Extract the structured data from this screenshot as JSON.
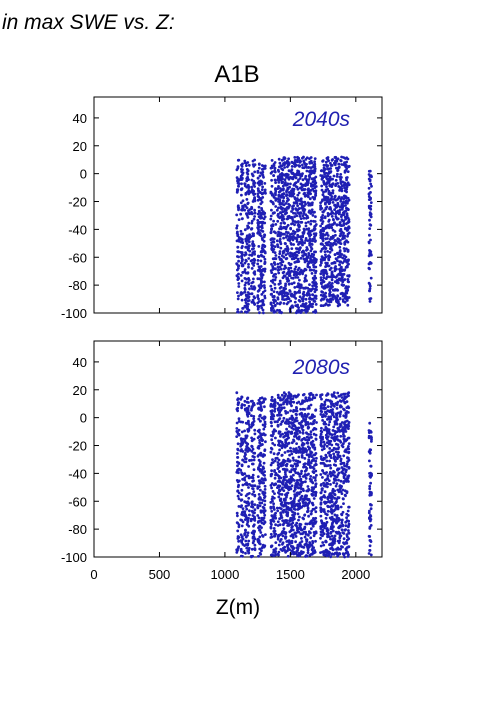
{
  "figure_title": "in max SWE vs. Z:",
  "point_color": "#1f1fb4",
  "chart_data": {
    "type": "scatter",
    "title": "A1B",
    "xlabel": "Z(m)",
    "ylabel": "",
    "xlim": [
      0,
      2200
    ],
    "x_ticks": [
      0,
      500,
      1000,
      1500,
      2000
    ],
    "grid": false,
    "panels": [
      {
        "label": "2040s",
        "ylim": [
          -100,
          55
        ],
        "y_ticks": [
          40,
          20,
          0,
          -20,
          -40,
          -60,
          -80,
          -100
        ],
        "point_density_note": "",
        "series": [
          {
            "point_groups_by_elevation": [
              {
                "z_range": [
                  1090,
                  1110
                ],
                "y_range": [
                  -100,
                  10
                ]
              },
              {
                "z_range": [
                  1120,
                  1140
                ],
                "y_range": [
                  -100,
                  8
                ]
              },
              {
                "z_range": [
                  1150,
                  1190
                ],
                "y_range": [
                  -100,
                  10
                ]
              },
              {
                "z_range": [
                  1200,
                  1230
                ],
                "y_range": [
                  -95,
                  10
                ]
              },
              {
                "z_range": [
                  1250,
                  1310
                ],
                "y_range": [
                  -100,
                  10
                ]
              },
              {
                "z_range": [
                  1350,
                  1390
                ],
                "y_range": [
                  -100,
                  10
                ]
              },
              {
                "z_range": [
                  1400,
                  1700
                ],
                "y_range": [
                  -100,
                  12
                ]
              },
              {
                "z_range": [
                  1730,
                  1950
                ],
                "y_range": [
                  -95,
                  12
                ]
              },
              {
                "z_range": [
                  2100,
                  2120
                ],
                "y_range": [
                  -92,
                  2
                ]
              }
            ]
          }
        ]
      },
      {
        "label": "2080s",
        "ylim": [
          -100,
          55
        ],
        "y_ticks": [
          40,
          20,
          0,
          -20,
          -40,
          -60,
          -80,
          -100
        ],
        "point_density_note": "",
        "series": [
          {
            "point_groups_by_elevation": [
              {
                "z_range": [
                  1090,
                  1110
                ],
                "y_range": [
                  -100,
                  18
                ]
              },
              {
                "z_range": [
                  1120,
                  1140
                ],
                "y_range": [
                  -100,
                  15
                ]
              },
              {
                "z_range": [
                  1150,
                  1190
                ],
                "y_range": [
                  -100,
                  15
                ]
              },
              {
                "z_range": [
                  1200,
                  1230
                ],
                "y_range": [
                  -100,
                  12
                ]
              },
              {
                "z_range": [
                  1250,
                  1310
                ],
                "y_range": [
                  -100,
                  15
                ]
              },
              {
                "z_range": [
                  1350,
                  1390
                ],
                "y_range": [
                  -100,
                  16
                ]
              },
              {
                "z_range": [
                  1400,
                  1700
                ],
                "y_range": [
                  -100,
                  18
                ]
              },
              {
                "z_range": [
                  1730,
                  1950
                ],
                "y_range": [
                  -100,
                  18
                ]
              },
              {
                "z_range": [
                  2100,
                  2120
                ],
                "y_range": [
                  -100,
                  0
                ]
              }
            ]
          }
        ]
      }
    ]
  }
}
